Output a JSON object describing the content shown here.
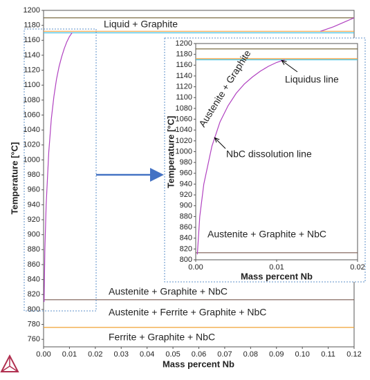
{
  "chart_data": [
    {
      "type": "line",
      "xlabel": "Mass percent Nb",
      "ylabel": "Temperature [°C]",
      "xlim": [
        0,
        0.12
      ],
      "ylim": [
        750,
        1200
      ],
      "xticks": [
        {
          "value": 0,
          "label": "0.00"
        },
        {
          "value": 0.01,
          "label": "0.01"
        },
        {
          "value": 0.02,
          "label": "0.02"
        },
        {
          "value": 0.03,
          "label": "0.03"
        },
        {
          "value": 0.04,
          "label": "0.04"
        },
        {
          "value": 0.05,
          "label": "0.05"
        },
        {
          "value": 0.06,
          "label": "0.06"
        },
        {
          "value": 0.07,
          "label": "0.07"
        },
        {
          "value": 0.08,
          "label": "0.08"
        },
        {
          "value": 0.09,
          "label": "0.09"
        },
        {
          "value": 0.1,
          "label": "0.10"
        },
        {
          "value": 0.11,
          "label": "0.11"
        },
        {
          "value": 0.12,
          "label": "0.12"
        }
      ],
      "yticks": [
        760,
        780,
        800,
        820,
        840,
        860,
        880,
        900,
        920,
        940,
        960,
        980,
        1000,
        1020,
        1040,
        1060,
        1080,
        1100,
        1120,
        1140,
        1160,
        1180,
        1200
      ],
      "series": [
        {
          "color": "#6b5b2e",
          "x": [
            0,
            0.12
          ],
          "values": [
            1190,
            1190
          ]
        },
        {
          "color": "#f0a040",
          "x": [
            0,
            0.12
          ],
          "values": [
            1172,
            1172
          ]
        },
        {
          "color": "#40c0e0",
          "x": [
            0,
            0.12
          ],
          "values": [
            1170,
            1170
          ]
        },
        {
          "color": "#7a5a50",
          "x": [
            0,
            0.12
          ],
          "values": [
            813,
            813
          ]
        },
        {
          "color": "#f0a030",
          "x": [
            0,
            0.12
          ],
          "values": [
            776,
            776
          ]
        },
        {
          "color": "#b040c0",
          "x": [
            0.0002,
            0.0005,
            0.001,
            0.002,
            0.003,
            0.004,
            0.005,
            0.006,
            0.007,
            0.008,
            0.009,
            0.01,
            0.011
          ],
          "values": [
            810,
            880,
            940,
            1010,
            1055,
            1085,
            1108,
            1125,
            1138,
            1149,
            1158,
            1165,
            1170
          ]
        },
        {
          "color": "#b040c0",
          "x": [
            0.107,
            0.112,
            0.116,
            0.12
          ],
          "values": [
            1172,
            1178,
            1184,
            1190
          ]
        }
      ],
      "annotations": [
        "Liquid + Graphite",
        "Austenite + Graphite + NbC",
        "Austenite + Ferrite + Graphite + NbC",
        "Ferrite + Graphite + NbC"
      ]
    },
    {
      "type": "line",
      "xlabel": "Mass percent Nb",
      "ylabel": "Temperature [°C]",
      "xlim": [
        0,
        0.02
      ],
      "ylim": [
        800,
        1200
      ],
      "xticks": [
        {
          "value": 0,
          "label": "0.00"
        },
        {
          "value": 0.01,
          "label": "0.01"
        },
        {
          "value": 0.02,
          "label": "0.02"
        }
      ],
      "yticks": [
        800,
        820,
        840,
        860,
        880,
        900,
        920,
        940,
        960,
        980,
        1000,
        1020,
        1040,
        1060,
        1080,
        1100,
        1120,
        1140,
        1160,
        1180,
        1200
      ],
      "series": [
        {
          "color": "#6b5b2e",
          "x": [
            0,
            0.02
          ],
          "values": [
            1190,
            1190
          ]
        },
        {
          "color": "#f0a040",
          "x": [
            0,
            0.02
          ],
          "values": [
            1172,
            1172
          ]
        },
        {
          "color": "#40c0e0",
          "x": [
            0,
            0.02
          ],
          "values": [
            1170,
            1170
          ]
        },
        {
          "color": "#7a5a50",
          "x": [
            0,
            0.02
          ],
          "values": [
            813,
            813
          ]
        },
        {
          "color": "#b040c0",
          "x": [
            0.0002,
            0.0005,
            0.001,
            0.002,
            0.003,
            0.004,
            0.005,
            0.006,
            0.007,
            0.008,
            0.009,
            0.01,
            0.011
          ],
          "values": [
            810,
            880,
            940,
            1010,
            1055,
            1085,
            1108,
            1125,
            1138,
            1149,
            1158,
            1165,
            1170
          ]
        }
      ],
      "annotations": [
        "Austenite + Graphite",
        "Liquidus line",
        "NbC dissolution line",
        "Austenite + Graphite + NbC"
      ]
    }
  ]
}
